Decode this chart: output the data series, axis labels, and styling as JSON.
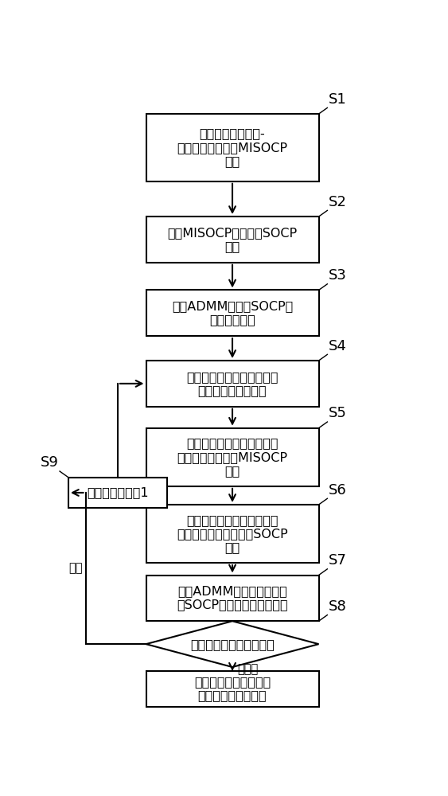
{
  "bg_color": "#ffffff",
  "S1_text": "建立多个区域的电-\n气综合能源系统的MISOCP\n模型",
  "S2_text": "根据MISOCP模型获得SOCP\n模型",
  "S3_text": "采用ADMM算法对SOCP模\n型进行初始化",
  "S4_text": "固定求解得到的共享信息值\n，更新整数变量的值",
  "S5_text": "各区域采用连续锥优化算法\n，自治求解各区域MISOCP\n模型",
  "S6_text": "固定求解得到的各区域整数\n变量的值，获得更新的SOCP\n模型",
  "S7_text": "采用ADMM算法对所述更新\n的SOCP模型进行分布式优化",
  "S8_text": "判断整数变量的变化情况",
  "S9_text": "使迭代次数增加1",
  "END_text": "返回当前各区域调度计\n划作为最终调度结果",
  "label_bianhua": "变化",
  "label_bubianha": "不变化",
  "font_size": 11.5,
  "label_fs": 13
}
